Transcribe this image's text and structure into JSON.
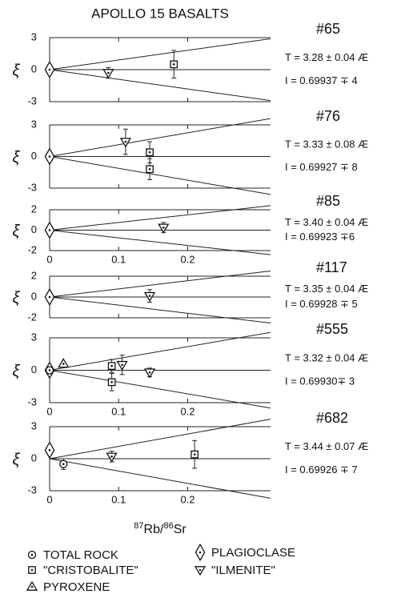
{
  "title": "APOLLO 15 BASALTS",
  "x_label": [
    "87",
    "Rb/",
    "86",
    "Sr"
  ],
  "legend": [
    {
      "label": "TOTAL ROCK",
      "marker": "circle"
    },
    {
      "label": "PLAGIOCLASE",
      "marker": "diamond"
    },
    {
      "label": "\"CRISTOBALITE\"",
      "marker": "square"
    },
    {
      "label": "\"ILMENITE\"",
      "marker": "triangle-down"
    },
    {
      "label": "PYROXENE",
      "marker": "triangle-up"
    }
  ],
  "chart_data": [
    {
      "type": "scatter",
      "label": "#65",
      "annotations": [
        "T = 3.28 ± 0.04 Æ",
        "I = 0.69937 ∓ 4"
      ],
      "y_label": "ξ",
      "xlim": [
        0,
        0.32
      ],
      "xticks": [
        0,
        0.1,
        0.2
      ],
      "xtick_labels": false,
      "ylim": [
        -3,
        3
      ],
      "yticks": [
        3,
        0,
        -3
      ],
      "envelope": 2.9,
      "series": [
        {
          "marker": "diamond",
          "x": [
            0
          ],
          "values": [
            0
          ],
          "errors": [
            null
          ]
        },
        {
          "marker": "triangle-down",
          "x": [
            0.085
          ],
          "values": [
            -0.3
          ],
          "errors": [
            0.5
          ]
        },
        {
          "marker": "square",
          "x": [
            0.18
          ],
          "values": [
            0.5
          ],
          "errors": [
            1.3
          ]
        }
      ]
    },
    {
      "type": "scatter",
      "label": "#76",
      "annotations": [
        "T = 3.33 ± 0.08 Æ",
        "I = 0.69927 ∓ 8"
      ],
      "y_label": "ξ",
      "xlim": [
        0,
        0.32
      ],
      "xticks": [
        0,
        0.1,
        0.2
      ],
      "xtick_labels": false,
      "ylim": [
        -3,
        3
      ],
      "yticks": [
        3,
        0,
        -3
      ],
      "envelope": 3.6,
      "series": [
        {
          "marker": "diamond",
          "x": [
            0
          ],
          "values": [
            0
          ],
          "errors": [
            null
          ]
        },
        {
          "marker": "triangle-down",
          "x": [
            0.11
          ],
          "values": [
            1.4
          ],
          "errors": [
            1.2
          ]
        },
        {
          "marker": "square",
          "x": [
            0.145,
            0.145
          ],
          "values": [
            0.4,
            -1.2
          ],
          "errors": [
            1.0,
            1.0
          ]
        }
      ]
    },
    {
      "type": "scatter",
      "label": "#85",
      "annotations": [
        "T = 3.40 ± 0.04 Æ",
        "I = 0.69923 ∓6"
      ],
      "y_label": "ξ",
      "xlim": [
        0,
        0.32
      ],
      "xticks": [
        0,
        0.1,
        0.2
      ],
      "xtick_labels": true,
      "ylim": [
        -2,
        2
      ],
      "yticks": [
        2,
        0,
        -2
      ],
      "envelope": 2.4,
      "series": [
        {
          "marker": "diamond",
          "x": [
            0
          ],
          "values": [
            0
          ],
          "errors": [
            null
          ]
        },
        {
          "marker": "triangle-down",
          "x": [
            0.165
          ],
          "values": [
            0.25
          ],
          "errors": [
            0.5
          ]
        }
      ]
    },
    {
      "type": "scatter",
      "label": "#117",
      "annotations": [
        "T = 3.35 ± 0.04 Æ",
        "I = 0.69928 ∓ 5"
      ],
      "y_label": "ξ",
      "xlim": [
        0,
        0.32
      ],
      "xticks": [
        0,
        0.1,
        0.2
      ],
      "xtick_labels": false,
      "ylim": [
        -2,
        2
      ],
      "yticks": [
        2,
        0,
        -2
      ],
      "envelope": 2.5,
      "series": [
        {
          "marker": "diamond",
          "x": [
            0
          ],
          "values": [
            0
          ],
          "errors": [
            null
          ]
        },
        {
          "marker": "triangle-down",
          "x": [
            0.145
          ],
          "values": [
            0.1
          ],
          "errors": [
            0.6
          ]
        }
      ]
    },
    {
      "type": "scatter",
      "label": "#555",
      "annotations": [
        "T = 3.32 ± 0.04 Æ",
        "I = 0.69930∓ 3"
      ],
      "y_label": "ξ",
      "xlim": [
        0,
        0.32
      ],
      "xticks": [
        0,
        0.1,
        0.2
      ],
      "xtick_labels": true,
      "ylim": [
        -3,
        3
      ],
      "yticks": [
        3,
        0,
        -3
      ],
      "envelope": 3.5,
      "series": [
        {
          "marker": "diamond",
          "x": [
            0
          ],
          "values": [
            0
          ],
          "errors": [
            null
          ]
        },
        {
          "marker": "circle",
          "x": [
            0
          ],
          "values": [
            0
          ],
          "errors": [
            null
          ]
        },
        {
          "marker": "triangle-up",
          "x": [
            0.02
          ],
          "values": [
            0.6
          ],
          "errors": [
            null
          ]
        },
        {
          "marker": "square",
          "x": [
            0.09,
            0.09
          ],
          "values": [
            0.4,
            -1.1
          ],
          "errors": [
            0.6,
            0.8
          ]
        },
        {
          "marker": "triangle-down",
          "x": [
            0.105,
            0.145
          ],
          "values": [
            0.5,
            -0.2
          ],
          "errors": [
            0.9,
            0.4
          ]
        }
      ]
    },
    {
      "type": "scatter",
      "label": "#682",
      "annotations": [
        "T = 3.44 ± 0.07 Æ",
        "I = 0.69926 ∓ 7"
      ],
      "y_label": "ξ",
      "xlim": [
        0,
        0.32
      ],
      "xticks": [
        0,
        0.1,
        0.2
      ],
      "xtick_labels": true,
      "ylim": [
        -3,
        3
      ],
      "yticks": [
        3,
        0,
        -3
      ],
      "envelope": 3.7,
      "series": [
        {
          "marker": "diamond",
          "x": [
            0
          ],
          "values": [
            0.8
          ],
          "errors": [
            null
          ]
        },
        {
          "marker": "circle",
          "x": [
            0.02
          ],
          "values": [
            -0.5
          ],
          "errors": [
            0.5
          ]
        },
        {
          "marker": "triangle-down",
          "x": [
            0.09
          ],
          "values": [
            0.2
          ],
          "errors": [
            0.5
          ]
        },
        {
          "marker": "square",
          "x": [
            0.21
          ],
          "values": [
            0.4
          ],
          "errors": [
            1.3
          ]
        }
      ]
    }
  ]
}
